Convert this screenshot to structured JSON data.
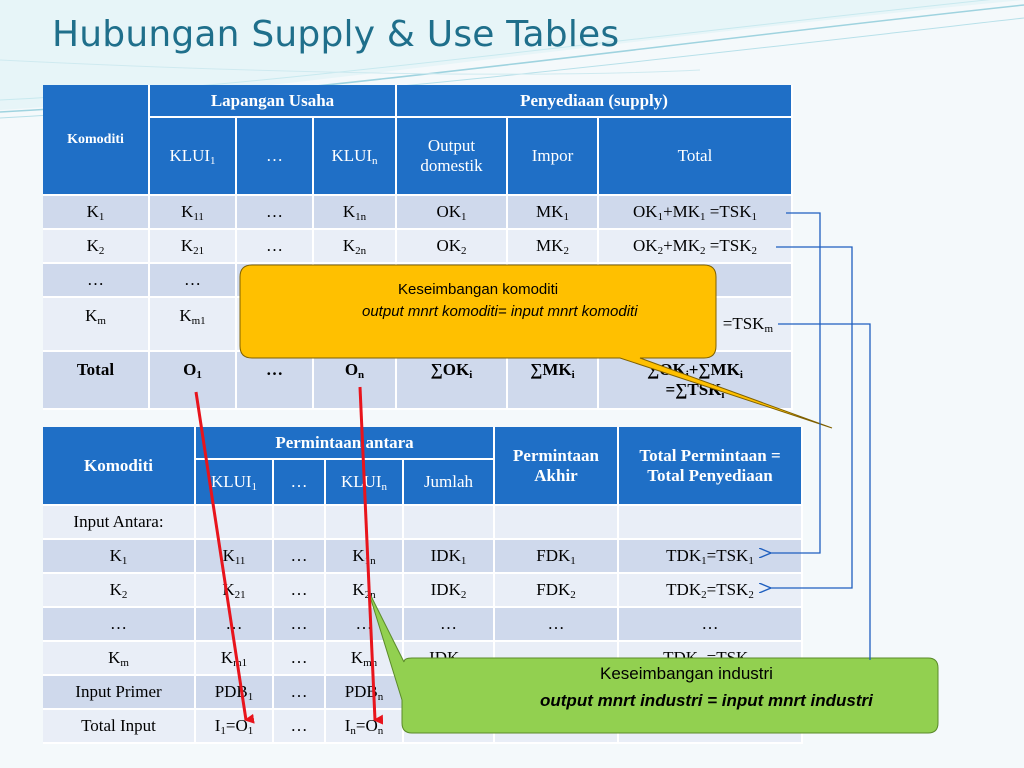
{
  "slide": {
    "title": "Hubungan Supply & Use Tables"
  },
  "supply_table": {
    "komoditi": "Komoditi",
    "lapangan_usaha": "Lapangan Usaha",
    "penyediaan": "Penyediaan (supply)",
    "klui1": "KLUI",
    "klui1_sub": "1",
    "dots": "…",
    "kluin": "KLUI",
    "kluin_sub": "n",
    "output_domestik": "Output domestik",
    "impor": "Impor",
    "total": "Total",
    "rows": {
      "r1": {
        "k": "K",
        "ks": "1",
        "a": "K",
        "as": "11",
        "b": "…",
        "c": "K",
        "cs": "1n",
        "d": "OK",
        "ds": "1",
        "e": "MK",
        "es": "1",
        "f1": "OK",
        "f1s": "1",
        "f2": "+MK",
        "f2s": "1",
        "f3": " =TSK",
        "f3s": "1"
      },
      "r2": {
        "k": "K",
        "ks": "2",
        "a": "K",
        "as": "21",
        "b": "…",
        "c": "K",
        "cs": "2n",
        "d": "OK",
        "ds": "2",
        "e": "MK",
        "es": "2",
        "f1": "OK",
        "f1s": "2",
        "f2": "+MK",
        "f2s": "2",
        "f3": " =TSK",
        "f3s": "2"
      },
      "r3": {
        "k": "…",
        "a": "…"
      },
      "rm": {
        "k": "K",
        "ks": "m",
        "a": "K",
        "as": "m1",
        "f3": "=TSK",
        "f3s": "m"
      },
      "rt": {
        "k": "Total",
        "a": "O",
        "as": "1",
        "b": "…",
        "c": "O",
        "cs": "n",
        "d": "∑OK",
        "ds": "i",
        "e": "∑MK",
        "es": "i",
        "f1": "∑OK",
        "f1s": "i",
        "f2": "+∑MK",
        "f2s": "i",
        "f3": "=∑TSK",
        "f3s": "i"
      }
    }
  },
  "use_table": {
    "komoditi": "Komoditi",
    "permintaan_antara": "Permintaan antara",
    "permintaan_akhir": "Permintaan Akhir",
    "total_permintaan": "Total Permintaan = Total Penyediaan",
    "klui1": "KLUI",
    "klui1_sub": "1",
    "dots": "…",
    "kluin": "KLUI",
    "kluin_sub": "n",
    "jumlah": "Jumlah",
    "rows": {
      "input_antara": {
        "k": "Input Antara:"
      },
      "r1": {
        "k": "K",
        "ks": "1",
        "a": "K",
        "as": "11",
        "b": "…",
        "c": "K",
        "cs": "1n",
        "d": "IDK",
        "ds": "1",
        "e": "FDK",
        "es": "1",
        "f1": "TDK",
        "f1s": "1",
        "f2": "=TSK",
        "f2s": "1"
      },
      "r2": {
        "k": "K",
        "ks": "2",
        "a": "K",
        "as": "21",
        "b": "…",
        "c": "K",
        "cs": "2n",
        "d": "IDK",
        "ds": "2",
        "e": "FDK",
        "es": "2",
        "f1": "TDK",
        "f1s": "2",
        "f2": "=TSK",
        "f2s": "2"
      },
      "r3": {
        "k": "…",
        "a": "…",
        "b": "…",
        "c": "…",
        "d": "…",
        "e": "…",
        "f1": "…"
      },
      "rm": {
        "k": "K",
        "ks": "m",
        "a": "K",
        "as": "m1",
        "b": "…",
        "c": "K",
        "cs": "mn",
        "d": "IDK",
        "ds": "m",
        "f1": "TDK",
        "f1s": "m",
        "f2": "=TSK",
        "f2s": "m"
      },
      "primer": {
        "k": "Input Primer",
        "a": "PDB",
        "as": "1",
        "b": "…",
        "c": "PDB",
        "cs": "n"
      },
      "total": {
        "k": "Total Input",
        "a": "I",
        "as": "1",
        "a2": "=O",
        "a2s": "1",
        "b": "…",
        "c": "I",
        "cs": "n",
        "c2": "=O",
        "c2s": "n"
      }
    }
  },
  "callouts": {
    "komoditi": {
      "line1": "Keseimbangan komoditi",
      "line2": "output mnrt komoditi= input mnrt komoditi",
      "color": "#ffc000"
    },
    "industri": {
      "line1": "Keseimbangan industri",
      "line2": "output mnrt industri = input mnrt industri",
      "color": "#92d050"
    }
  },
  "colors": {
    "header_blue": "#1f6fc6",
    "row_dark": "#cfd9ec",
    "row_light": "#e9eef7",
    "title": "#1f6f8b",
    "arrow_red": "#e8141c",
    "connector_blue": "#1f5fbf"
  }
}
